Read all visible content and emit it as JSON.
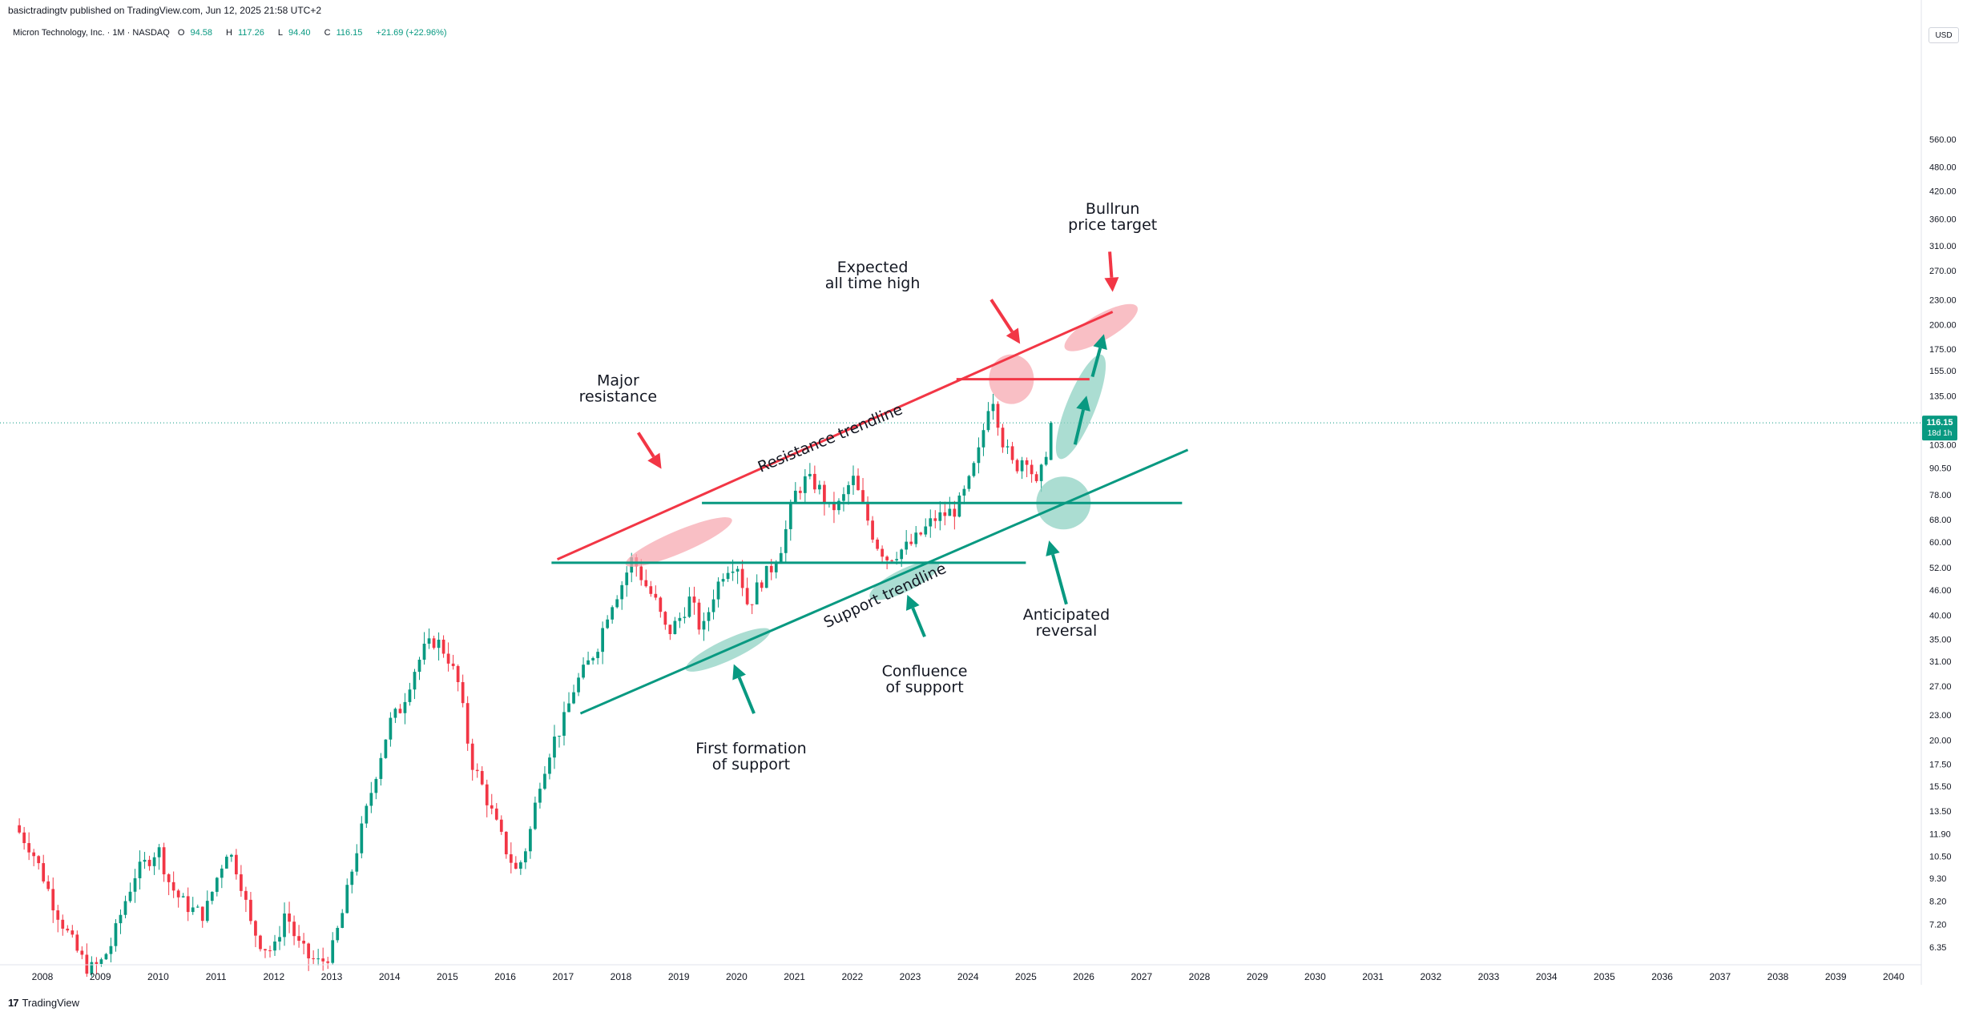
{
  "header": {
    "published": "basictradingtv published on TradingView.com, Jun 12, 2025 21:58 UTC+2",
    "symbol": "Micron Technology, Inc. · 1M · NASDAQ",
    "o_label": "O",
    "o_value": "94.58",
    "h_label": "H",
    "h_value": "117.26",
    "l_label": "L",
    "l_value": "94.40",
    "c_label": "C",
    "c_value": "116.15",
    "change": "+21.69 (+22.96%)",
    "currency": "USD"
  },
  "footer": {
    "brand": "TradingView",
    "logo_mark": "17"
  },
  "colors": {
    "up": "#089981",
    "down": "#f23645",
    "resistance": "#f23645",
    "support": "#089981",
    "resistance_fill": "#f7a9b2",
    "support_fill": "#8fd1c3",
    "axis_text": "#131722",
    "grid": "#f0f3fa"
  },
  "chart_data": {
    "type": "candlestick",
    "title": "Micron Technology, Inc. · 1M · NASDAQ",
    "y_scale": "log",
    "ylim": [
      5.6,
      580
    ],
    "xlim": [
      "2007-08",
      "2040-06"
    ],
    "x_ticks": [
      "2008",
      "2009",
      "2010",
      "2011",
      "2012",
      "2013",
      "2014",
      "2015",
      "2016",
      "2017",
      "2018",
      "2019",
      "2020",
      "2021",
      "2022",
      "2023",
      "2024",
      "2025",
      "2026",
      "2027",
      "2028",
      "2029",
      "2030",
      "2031",
      "2032",
      "2033",
      "2034",
      "2035",
      "2036",
      "2037",
      "2038",
      "2039",
      "2040"
    ],
    "y_ticks": [
      "6.35",
      "7.20",
      "8.20",
      "9.30",
      "10.50",
      "11.90",
      "13.50",
      "15.50",
      "17.50",
      "20.00",
      "23.00",
      "27.00",
      "31.00",
      "35.00",
      "40.00",
      "46.00",
      "52.00",
      "60.00",
      "68.00",
      "78.00",
      "90.50",
      "103.00",
      "135.00",
      "155.00",
      "175.00",
      "200.00",
      "230.00",
      "270.00",
      "310.00",
      "360.00",
      "420.00",
      "480.00",
      "560.00"
    ],
    "last_price": {
      "value": 116.15,
      "label": "116.15",
      "countdown": "18d 1h"
    },
    "price_path_t": [
      2007.6,
      2007.8,
      2008.0,
      2008.2,
      2008.4,
      2008.6,
      2008.8,
      2009.0,
      2009.2,
      2009.4,
      2009.6,
      2009.8,
      2010.0,
      2010.2,
      2010.4,
      2010.6,
      2010.8,
      2011.0,
      2011.2,
      2011.4,
      2011.6,
      2011.8,
      2012.0,
      2012.2,
      2012.4,
      2012.6,
      2012.8,
      2013.0,
      2013.2,
      2013.4,
      2013.6,
      2013.8,
      2014.0,
      2014.2,
      2014.4,
      2014.6,
      2014.8,
      2015.0,
      2015.2,
      2015.4,
      2015.6,
      2015.8,
      2016.0,
      2016.2,
      2016.4,
      2016.6,
      2016.8,
      2017.0,
      2017.2,
      2017.4,
      2017.6,
      2017.8,
      2018.0,
      2018.2,
      2018.4,
      2018.6,
      2018.8,
      2019.0,
      2019.2,
      2019.4,
      2019.6,
      2019.8,
      2020.0,
      2020.2,
      2020.4,
      2020.6,
      2020.8,
      2021.0,
      2021.2,
      2021.4,
      2021.6,
      2021.8,
      2022.0,
      2022.2,
      2022.4,
      2022.6,
      2022.8,
      2023.0,
      2023.2,
      2023.4,
      2023.6,
      2023.8,
      2024.0,
      2024.2,
      2024.4,
      2024.6,
      2024.8,
      2025.0,
      2025.2,
      2025.45
    ],
    "price_path_v": [
      12.0,
      11.0,
      9.5,
      8.0,
      7.0,
      6.2,
      5.6,
      5.8,
      6.5,
      8.0,
      9.5,
      10.2,
      11.0,
      9.0,
      8.2,
      7.8,
      7.6,
      9.2,
      11.0,
      9.5,
      7.2,
      6.4,
      6.2,
      7.8,
      6.5,
      6.0,
      5.8,
      6.2,
      7.8,
      10.5,
      13.5,
      17.5,
      22.0,
      24.0,
      29.0,
      33.0,
      35.0,
      32.0,
      27.0,
      18.0,
      15.5,
      13.0,
      11.0,
      9.6,
      11.5,
      16.0,
      19.5,
      22.0,
      27.0,
      30.0,
      34.0,
      42.0,
      47.0,
      55.0,
      48.0,
      43.0,
      36.0,
      39.0,
      44.0,
      36.0,
      45.0,
      52.0,
      54.0,
      42.0,
      48.0,
      52.0,
      60.0,
      78.0,
      85.0,
      82.0,
      72.0,
      74.0,
      86.0,
      72.0,
      60.0,
      55.0,
      57.0,
      59.0,
      63.0,
      68.0,
      70.0,
      72.0,
      82.0,
      100.0,
      140.0,
      105.0,
      90.0,
      98.0,
      80.0,
      116.15
    ],
    "levels": [
      {
        "label": "Resistance trendline",
        "from": [
          "2016.9",
          54.5
        ],
        "to": [
          "2026.5",
          215
        ]
      },
      {
        "label": "Support trendline",
        "from": [
          "2017.3",
          23.2
        ],
        "to": [
          "2027.8",
          100
        ]
      },
      {
        "label": "",
        "from": [
          "2016.8",
          53.5
        ],
        "to": [
          "2025.0",
          53.5
        ]
      },
      {
        "label": "",
        "from": [
          "2019.4",
          74.5
        ],
        "to": [
          "2027.7",
          74.5
        ]
      },
      {
        "label": "",
        "from": [
          "2023.8",
          148
        ],
        "to": [
          "2026.1",
          148
        ]
      }
    ],
    "annotations": {
      "major_resistance": "Major\nresistance",
      "expected_ath": "Expected\nall time high",
      "bullrun_target": "Bullrun\nprice target",
      "first_support": "First formation\nof support",
      "confluence": "Confluence\nof support",
      "anticipated": "Anticipated\nreversal",
      "resistance_line": "Resistance trendline",
      "support_line": "Support trendline"
    }
  }
}
